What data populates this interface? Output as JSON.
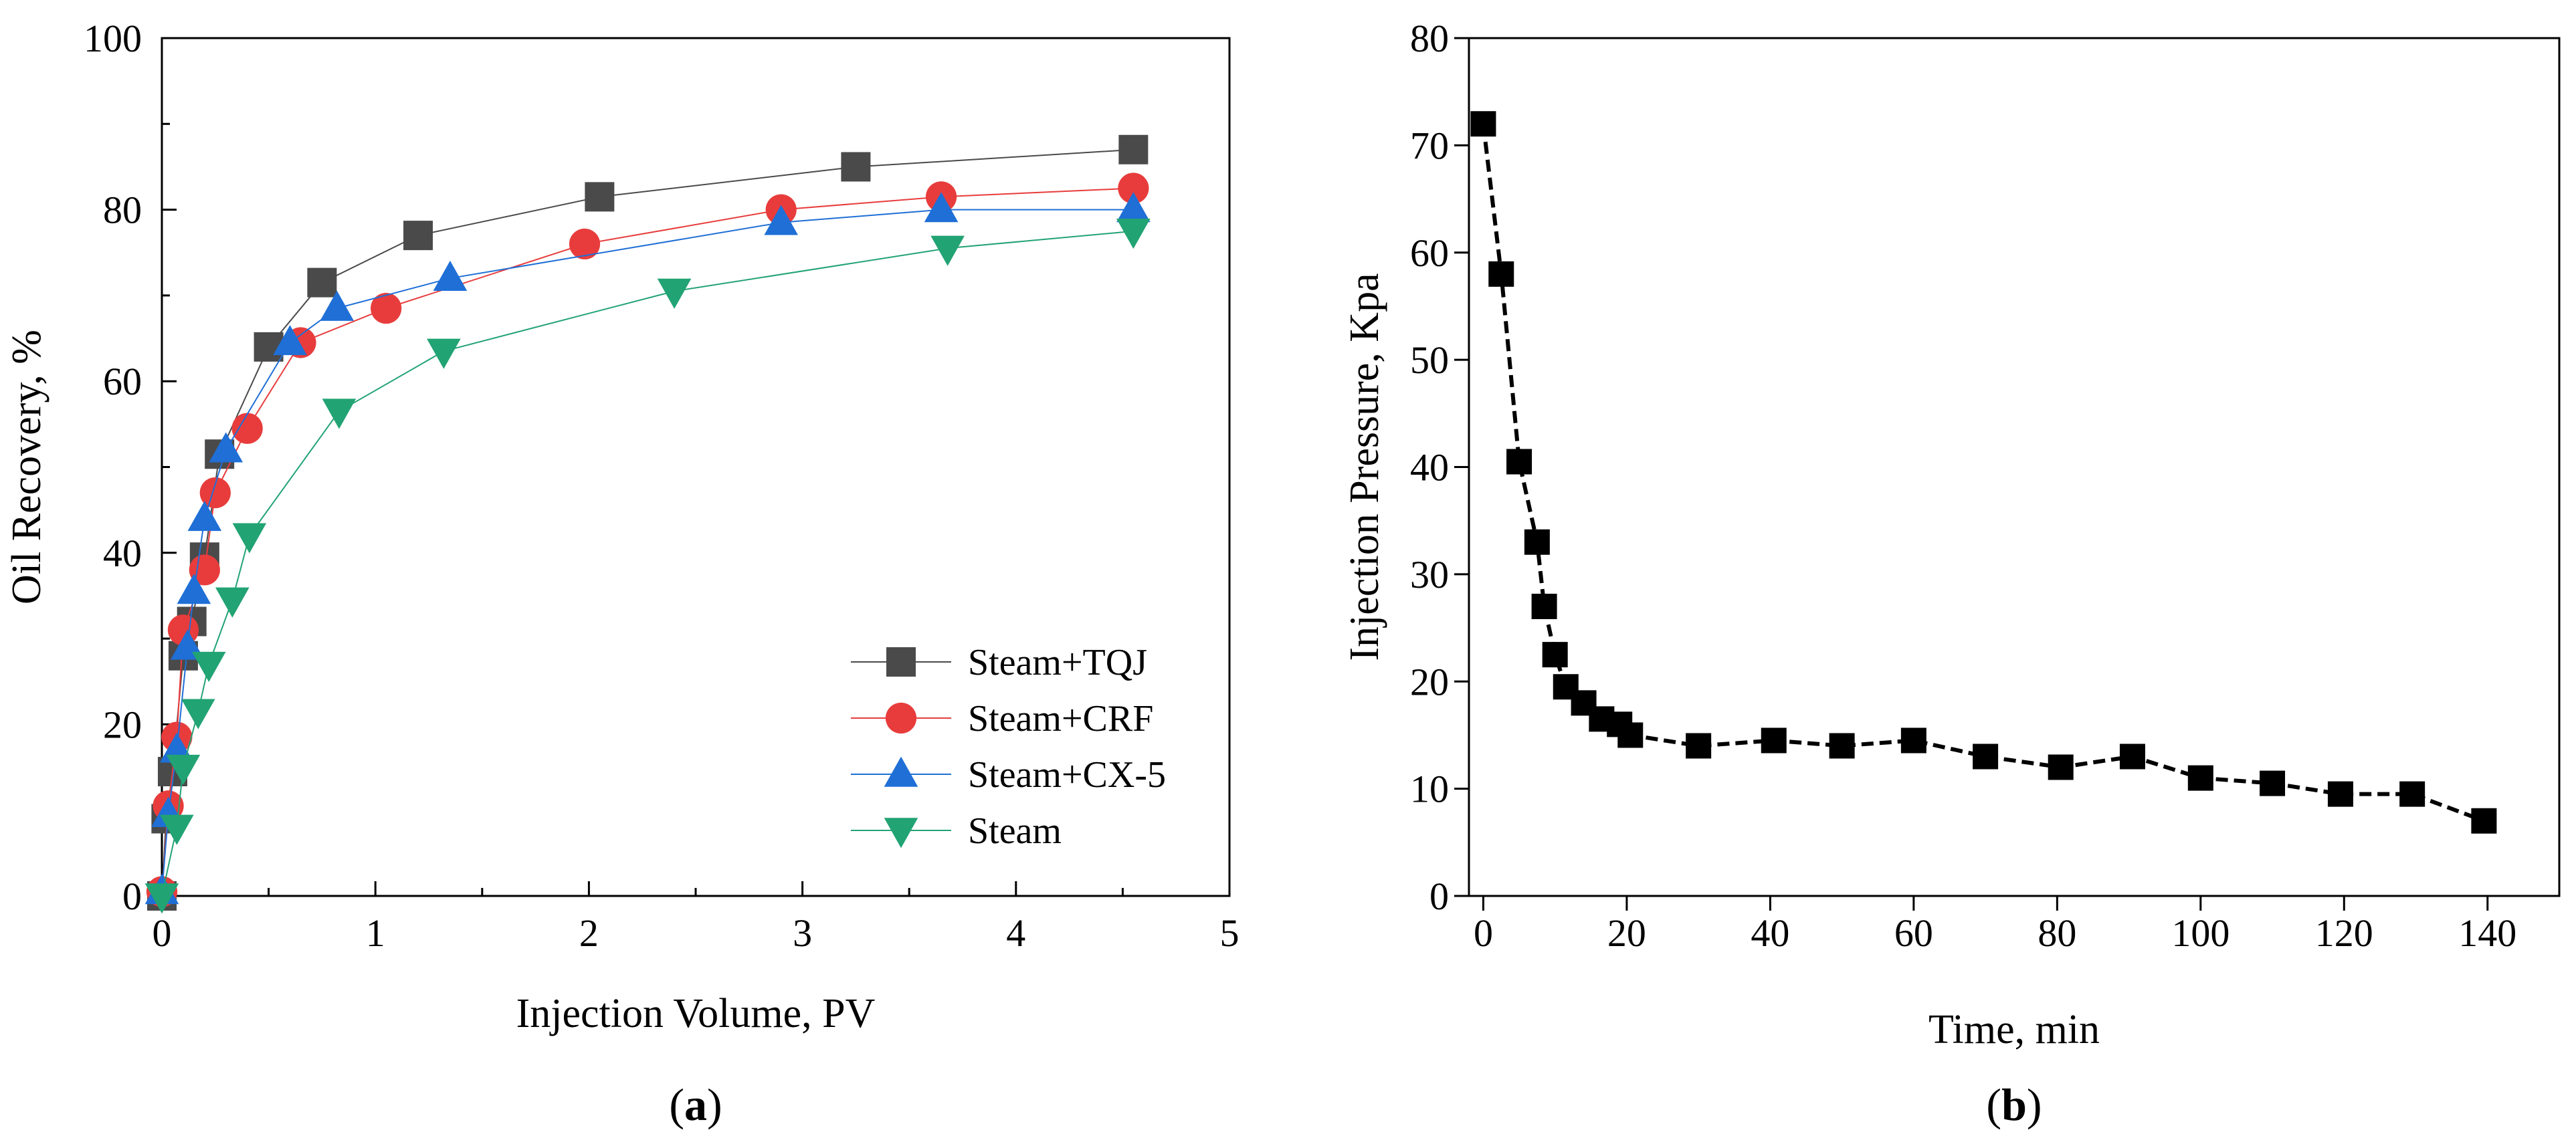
{
  "chart_data": [
    {
      "id": "a",
      "type": "line",
      "panel_label": "a",
      "xlabel": "Injection Volume, PV",
      "ylabel": "Oil Recovery, %",
      "xlim": [
        0,
        5
      ],
      "ylim": [
        0,
        100
      ],
      "xticks": [
        0,
        1,
        2,
        3,
        4,
        5
      ],
      "yticks": [
        0,
        20,
        40,
        60,
        80,
        100
      ],
      "legend_position": "lower-right",
      "grid": false,
      "series": [
        {
          "name": "Steam+TQJ",
          "color": "#4a4a4a",
          "marker": "square",
          "x": [
            0,
            0.02,
            0.05,
            0.1,
            0.14,
            0.2,
            0.27,
            0.5,
            0.75,
            1.2,
            2.05,
            3.25,
            4.55
          ],
          "y": [
            0,
            9,
            14.5,
            28,
            32,
            39.5,
            51.5,
            64,
            71.5,
            77,
            81.5,
            85,
            87
          ]
        },
        {
          "name": "Steam+CRF",
          "color": "#e83c3c",
          "marker": "circle",
          "x": [
            0,
            0.03,
            0.07,
            0.1,
            0.2,
            0.25,
            0.4,
            0.65,
            1.05,
            1.98,
            2.9,
            3.65,
            4.55
          ],
          "y": [
            0.5,
            10.5,
            18.5,
            31,
            38,
            47,
            54.5,
            64.5,
            68.5,
            76,
            80,
            81.5,
            82.5
          ]
        },
        {
          "name": "Steam+CX-5",
          "color": "#1f6fd6",
          "marker": "triangle-up",
          "x": [
            0,
            0.03,
            0.07,
            0.12,
            0.15,
            0.2,
            0.3,
            0.6,
            0.82,
            1.35,
            2.9,
            3.65,
            4.55
          ],
          "y": [
            0.5,
            9.5,
            17,
            29,
            35.5,
            44,
            52,
            64.5,
            68.5,
            72,
            78.5,
            80,
            80
          ]
        },
        {
          "name": "Steam",
          "color": "#22a374",
          "marker": "triangle-down",
          "x": [
            0,
            0.07,
            0.1,
            0.17,
            0.22,
            0.33,
            0.41,
            0.83,
            1.32,
            2.4,
            3.68,
            4.55
          ],
          "y": [
            0,
            8,
            15,
            21.5,
            27,
            34.5,
            42,
            56.5,
            63.5,
            70.5,
            75.5,
            77.5
          ]
        }
      ]
    },
    {
      "id": "b",
      "type": "line",
      "panel_label": "b",
      "xlabel": "Time, min",
      "ylabel": "Injection Pressure, Kpa",
      "xlim": [
        -2,
        150
      ],
      "ylim": [
        0,
        80
      ],
      "xticks": [
        0,
        20,
        40,
        60,
        80,
        100,
        120,
        140
      ],
      "yticks": [
        0,
        10,
        20,
        30,
        40,
        50,
        60,
        70,
        80
      ],
      "grid": false,
      "series": [
        {
          "name": "Injection Pressure",
          "color": "#000000",
          "marker": "square",
          "line_style": "dashed",
          "x": [
            0,
            2.5,
            5,
            7.5,
            8.5,
            10,
            11.5,
            14,
            16.5,
            19,
            20.5,
            30,
            40.5,
            50,
            60,
            70,
            80.5,
            90.5,
            100,
            110,
            119.5,
            129.5,
            139.5
          ],
          "y": [
            72,
            58,
            40.5,
            33,
            27,
            22.5,
            19.5,
            18,
            16.5,
            16,
            15,
            14,
            14.5,
            14,
            14.5,
            13,
            12,
            13,
            11,
            10.5,
            9.5,
            9.5,
            7
          ]
        }
      ]
    }
  ]
}
